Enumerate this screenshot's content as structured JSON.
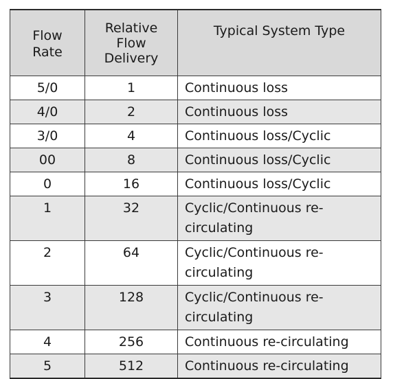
{
  "table": {
    "headers": {
      "flow_rate": [
        "Flow",
        "Rate"
      ],
      "relative_flow_delivery": [
        "Relative",
        "Flow",
        "Delivery"
      ],
      "system_type": "Typical System Type"
    },
    "rows": [
      {
        "flow_rate": "5/0",
        "delivery": "1",
        "system_type": [
          "Continuous loss"
        ]
      },
      {
        "flow_rate": "4/0",
        "delivery": "2",
        "system_type": [
          "Continuous loss"
        ]
      },
      {
        "flow_rate": "3/0",
        "delivery": "4",
        "system_type": [
          "Continuous loss/Cyclic"
        ]
      },
      {
        "flow_rate": "00",
        "delivery": "8",
        "system_type": [
          "Continuous loss/Cyclic"
        ]
      },
      {
        "flow_rate": "0",
        "delivery": "16",
        "system_type": [
          "Continuous loss/Cyclic"
        ]
      },
      {
        "flow_rate": "1",
        "delivery": "32",
        "system_type": [
          "Cyclic/Continuous re-",
          "circulating"
        ]
      },
      {
        "flow_rate": "2",
        "delivery": "64",
        "system_type": [
          "Cyclic/Continuous re-",
          "circulating"
        ]
      },
      {
        "flow_rate": "3",
        "delivery": "128",
        "system_type": [
          "Cyclic/Continuous re-",
          "circulating"
        ]
      },
      {
        "flow_rate": "4",
        "delivery": "256",
        "system_type": [
          "Continuous re-circulating"
        ]
      },
      {
        "flow_rate": "5",
        "delivery": "512",
        "system_type": [
          "Continuous re-circulating"
        ]
      }
    ]
  }
}
